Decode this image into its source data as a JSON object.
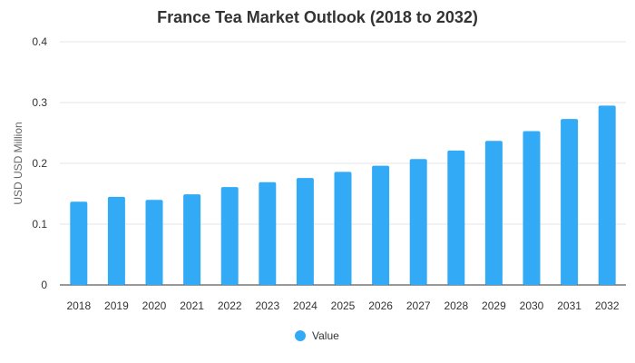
{
  "chart_data": {
    "type": "bar",
    "title": "France Tea Market Outlook (2018 to 2032)",
    "xlabel": "",
    "ylabel": "USD USD Million",
    "categories": [
      "2018",
      "2019",
      "2020",
      "2021",
      "2022",
      "2023",
      "2024",
      "2025",
      "2026",
      "2027",
      "2028",
      "2029",
      "2030",
      "2031",
      "2032"
    ],
    "series": [
      {
        "name": "Value",
        "values": [
          0.137,
          0.145,
          0.14,
          0.149,
          0.161,
          0.169,
          0.176,
          0.186,
          0.196,
          0.207,
          0.221,
          0.237,
          0.253,
          0.273,
          0.295
        ]
      }
    ],
    "ylim": [
      0,
      0.4
    ],
    "yticks": [
      "0",
      "0.1",
      "0.2",
      "0.3",
      "0.4"
    ],
    "grid": true,
    "legend_position": "bottom-center",
    "bar_color": "#33aaf5",
    "grid_color": "#e6e6e6",
    "axis_color": "#333333"
  }
}
